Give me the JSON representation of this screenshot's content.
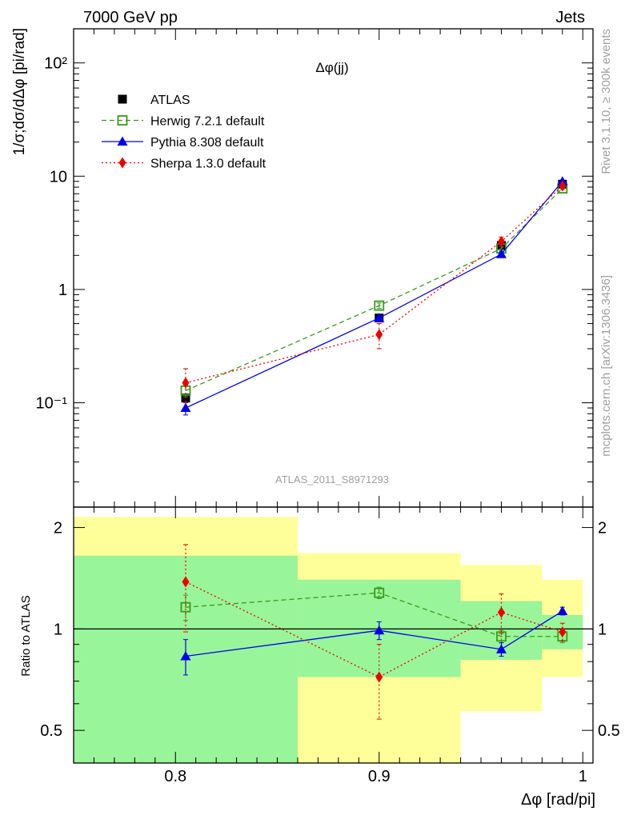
{
  "header": {
    "left": "7000 GeV pp",
    "right": "Jets"
  },
  "side_labels": {
    "top": "Rivet 3.1.10, ≥ 300k events",
    "bottom": "mcplots.cern.ch [arXiv:1306.3436]"
  },
  "colors": {
    "data": "#000000",
    "herwig": "#3a9a1a",
    "pythia": "#0000ee",
    "sherpa": "#ee0000",
    "band_inner": "#99f599",
    "band_outer": "#ffff99"
  },
  "chart_data": [
    {
      "panel": "main",
      "type": "line",
      "title": "Δφ(jj)",
      "ylabel": "1/σ;dσ/dΔφ [pi/rad]",
      "watermark": "ATLAS_2011_S8971293",
      "yscale": "log",
      "xlim": [
        0.75,
        1.005
      ],
      "ylim": [
        0.012,
        200
      ],
      "ticks": {
        "y": [
          "10⁻¹",
          "1",
          "10",
          "10²"
        ]
      },
      "series": [
        {
          "name": "ATLAS",
          "style": "data",
          "x": [
            0.805,
            0.9,
            0.96,
            0.99
          ],
          "y": [
            0.11,
            0.56,
            2.45,
            8.5
          ]
        },
        {
          "name": "Herwig 7.2.1 default",
          "style": "herwig",
          "x": [
            0.805,
            0.9,
            0.96,
            0.99
          ],
          "y": [
            0.128,
            0.72,
            2.3,
            7.8
          ],
          "err": [
            0.015,
            0.04,
            0.1,
            0.2
          ]
        },
        {
          "name": "Pythia 8.308 default",
          "style": "pythia",
          "x": [
            0.805,
            0.9,
            0.96,
            0.99
          ],
          "y": [
            0.09,
            0.56,
            2.05,
            9.0
          ],
          "err": [
            0.012,
            0.04,
            0.1,
            0.2
          ]
        },
        {
          "name": "Sherpa 1.3.0 default",
          "style": "sherpa",
          "x": [
            0.805,
            0.9,
            0.96,
            0.99
          ],
          "y": [
            0.15,
            0.4,
            2.65,
            8.2
          ],
          "err": [
            0.05,
            0.1,
            0.25,
            0.3
          ]
        }
      ]
    },
    {
      "panel": "ratio",
      "type": "line",
      "xlabel": "Δφ [rad/pi]",
      "ylabel": "Ratio to ATLAS",
      "xlim": [
        0.75,
        1.005
      ],
      "ylim": [
        0.4,
        2.3
      ],
      "yscale": "log",
      "ticks": {
        "x": [
          "0.8",
          "0.9",
          "1"
        ],
        "y": [
          "0.5",
          "1",
          "2"
        ]
      },
      "bands": [
        {
          "x0": 0.75,
          "x1": 0.86,
          "inner": [
            0.36,
            1.65
          ],
          "outer": [
            0.34,
            2.15
          ]
        },
        {
          "x0": 0.86,
          "x1": 0.94,
          "inner": [
            0.72,
            1.4
          ],
          "outer": [
            0.34,
            1.68
          ]
        },
        {
          "x0": 0.94,
          "x1": 0.98,
          "inner": [
            0.81,
            1.21
          ],
          "outer": [
            0.57,
            1.55
          ]
        },
        {
          "x0": 0.98,
          "x1": 1.0,
          "inner": [
            0.87,
            1.1
          ],
          "outer": [
            0.72,
            1.4
          ]
        }
      ],
      "series": [
        {
          "name": "Herwig 7.2.1 default",
          "style": "herwig",
          "x": [
            0.805,
            0.9,
            0.96,
            0.99
          ],
          "y": [
            1.16,
            1.28,
            0.95,
            0.95
          ],
          "err": [
            0.1,
            0.05,
            0.04,
            0.04
          ]
        },
        {
          "name": "Pythia 8.308 default",
          "style": "pythia",
          "x": [
            0.805,
            0.9,
            0.96,
            0.99
          ],
          "y": [
            0.83,
            0.99,
            0.87,
            1.13
          ],
          "err": [
            0.1,
            0.06,
            0.04,
            0.03
          ]
        },
        {
          "name": "Sherpa 1.3.0 default",
          "style": "sherpa",
          "x": [
            0.805,
            0.9,
            0.96,
            0.99
          ],
          "y": [
            1.38,
            0.72,
            1.12,
            0.98
          ],
          "err": [
            0.4,
            0.18,
            0.15,
            0.06
          ]
        }
      ]
    }
  ]
}
